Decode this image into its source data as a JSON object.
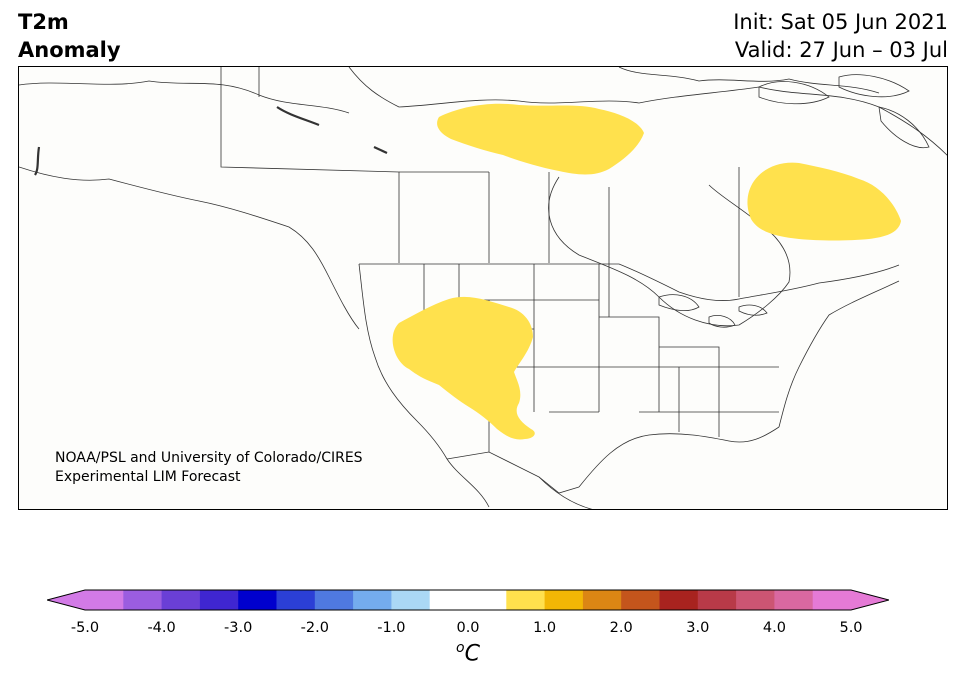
{
  "header": {
    "title_line1": "T2m",
    "title_line2": "Anomaly",
    "init": "Init: Sat 05 Jun 2021",
    "valid": "Valid: 27 Jun – 03 Jul"
  },
  "credit": {
    "line1": "NOAA/PSL and University of Colorado/CIRES",
    "line2": "Experimental LIM Forecast"
  },
  "colorbar": {
    "unit_base": "C",
    "unit_sup": "o",
    "ticks": [
      "-5.0",
      "-4.0",
      "-3.0",
      "-2.0",
      "-1.0",
      "0.0",
      "1.0",
      "2.0",
      "3.0",
      "4.0",
      "5.0"
    ],
    "under_color": "#d27ae6",
    "over_color": "#e57ad6",
    "colors": [
      "#d27ae6",
      "#9b5de0",
      "#6a3fd6",
      "#3f26d1",
      "#0000cd",
      "#2b3fd6",
      "#4f79e0",
      "#74acee",
      "#aad8f5",
      "#ffffff",
      "#ffffff",
      "#ffe14d",
      "#f2b705",
      "#db8614",
      "#c4551c",
      "#a8231f",
      "#b83a48",
      "#cc5573",
      "#d968a1",
      "#e57ad6"
    ]
  },
  "map": {
    "region": "North America",
    "anomaly_fill_color": "#ffe14d",
    "land_color": "#fdfdfb",
    "border_color": "#333333"
  }
}
